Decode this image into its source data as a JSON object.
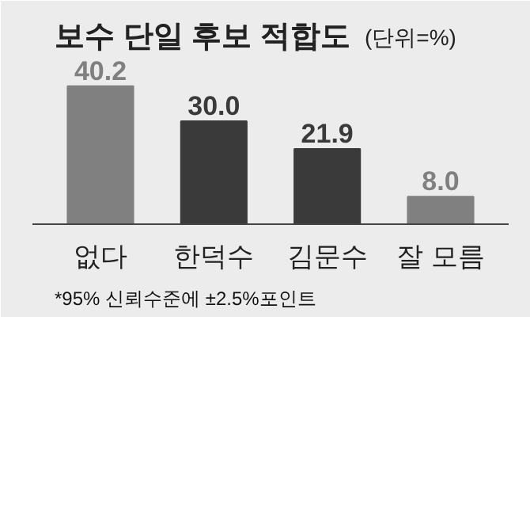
{
  "chart_data": {
    "type": "bar",
    "title": "보수 단일 후보 적합도",
    "subtitle": "(단위=%)",
    "categories": [
      "없다",
      "한덕수",
      "김문수",
      "잘 모름"
    ],
    "values": [
      40.2,
      30.0,
      21.9,
      8.0
    ],
    "colors": [
      "#808080",
      "#3a3a3a",
      "#3a3a3a",
      "#808080"
    ],
    "data_labels": true,
    "value_labels": [
      "40.2",
      "30.0",
      "21.9",
      "8.0"
    ],
    "annotations": [
      "*95% 신뢰수준에 ±2.5%포인트"
    ]
  }
}
